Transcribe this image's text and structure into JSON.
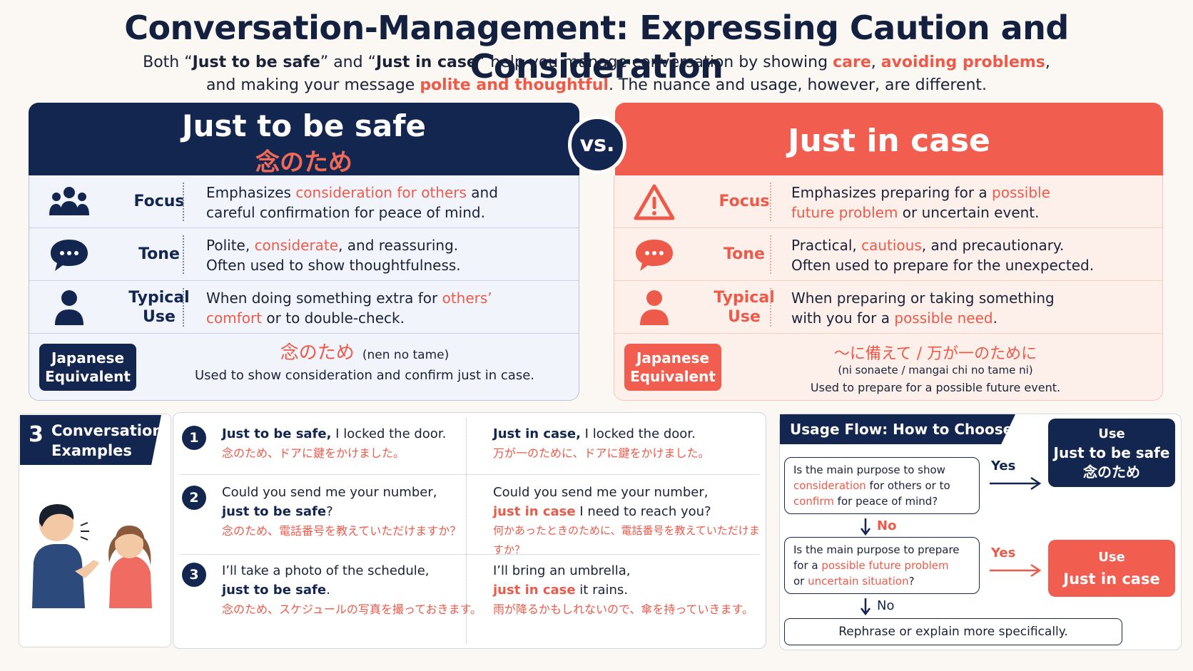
{
  "title": "Conversation-Management: Expressing Caution and Consideration",
  "intro": {
    "l1_a": "Both “",
    "l1_b": "Just to be safe",
    "l1_c": "” and “",
    "l1_d": "Just in case",
    "l1_e": "” help you manage conversation by showing ",
    "l1_f": "care",
    "l1_g": ", ",
    "l1_h": "avoiding problems",
    "l1_i": ",",
    "l2_a": "and making your message ",
    "l2_b": "polite and thoughtful",
    "l2_c": ". The nuance and usage, however, are different."
  },
  "vs": "vs.",
  "left": {
    "title": "Just to be safe",
    "title_jp": "念のため",
    "rows": [
      {
        "label": "Focus",
        "d1": "Emphasizes ",
        "d2": "consideration for others",
        "d3": " and",
        "d4": "careful confirmation for peace of mind."
      },
      {
        "label": "Tone",
        "d1": "Polite, ",
        "d2": "considerate",
        "d3": ", and reassuring.",
        "d4": "Often used to show thoughtfulness."
      },
      {
        "label1": "Typical",
        "label2": "Use",
        "d1": "When doing something extra for ",
        "d2": "others’",
        "d3": "comfort",
        "d4": " or to double-check."
      }
    ],
    "jp_badge_1": "Japanese",
    "jp_badge_2": "Equivalent",
    "jp_term": "念のため",
    "jp_reading": "(nen no tame)",
    "jp_note": "Used to show consideration and confirm just in case."
  },
  "right": {
    "title": "Just in case",
    "rows": [
      {
        "label": "Focus",
        "d1": "Emphasizes preparing for a ",
        "d2": "possible",
        "d3": "future problem",
        "d4": " or uncertain event."
      },
      {
        "label": "Tone",
        "d1": "Practical, ",
        "d2": "cautious",
        "d3": ", and precautionary.",
        "d4": "Often used to prepare for the unexpected."
      },
      {
        "label1": "Typical",
        "label2": "Use",
        "d1": "When preparing or taking something",
        "d2": "with you for a ",
        "d3": "possible need",
        "d4": "."
      }
    ],
    "jp_badge_1": "Japanese",
    "jp_badge_2": "Equivalent",
    "jp_term": "〜に備えて / 万が一のために",
    "jp_reading": "(ni sonaete / mangai chi no tame ni)",
    "jp_note": "Used to prepare for a possible future event."
  },
  "examples_label": {
    "num": "3",
    "l1": "Conversation",
    "l2": "Examples"
  },
  "examples": [
    {
      "num": "1",
      "left": {
        "b": "Just to be safe,",
        "t": " I locked the door.",
        "jp": "念のため、ドアに鍵をかけました。"
      },
      "right": {
        "b": "Just in case,",
        "t": " I locked the door.",
        "jp": "万が一のために、ドアに鍵をかけました。"
      }
    },
    {
      "num": "2",
      "left": {
        "l1": "Could you send me your number,",
        "b": "just to be safe",
        "t": "?",
        "jp": "念のため、電話番号を教えていただけますか？"
      },
      "right": {
        "l1": "Could you send me your number,",
        "b": "just in case",
        "t": " I need to reach you?",
        "jp": "何かあったときのために、電話番号を教えていただけますか？"
      }
    },
    {
      "num": "3",
      "left": {
        "l1": "I’ll take a photo of the schedule,",
        "b": "just to be safe",
        "t": ".",
        "jp": "念のため、スケジュールの写真を撮っておきます。"
      },
      "right": {
        "l1": "I’ll bring an umbrella,",
        "b": "just in case",
        "t": " it rains.",
        "jp": "雨が降るかもしれないので、傘を持っていきます。"
      }
    }
  ],
  "flow": {
    "title": "Usage Flow: How to Choose",
    "q1": {
      "a": "Is the main purpose to show",
      "b": "consideration",
      "c": " for others or to",
      "d": "confirm",
      "e": " for peace of mind?"
    },
    "q2": {
      "a": "Is the main purpose to prepare",
      "b": "for a ",
      "c": "possible future problem",
      "d": "or ",
      "e": "uncertain situation",
      "f": "?"
    },
    "yes": "Yes",
    "no": "No",
    "ans1": {
      "l1": "Use",
      "l2": "Just to be safe",
      "l3": "念のため"
    },
    "ans2": {
      "l1": "Use",
      "l2": "Just in case"
    },
    "final": "Rephrase or explain more specifically."
  },
  "colors": {
    "navy": "#13264f",
    "coral": "#f15d4e",
    "accent": "#ee5a4a"
  }
}
